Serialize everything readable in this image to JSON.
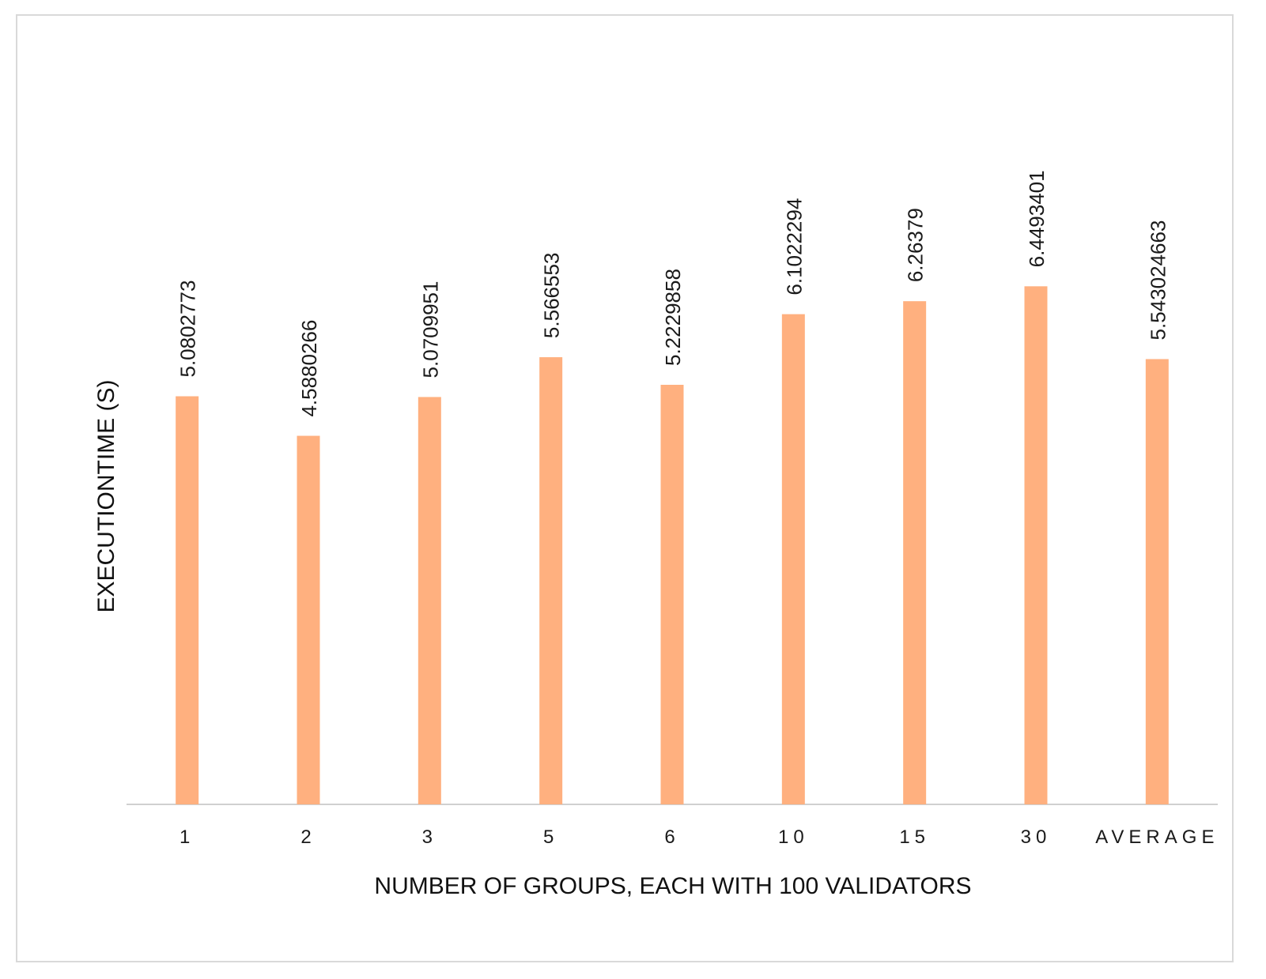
{
  "chart_data": {
    "type": "bar",
    "title": "",
    "xlabel": "NUMBER OF GROUPS, EACH WITH 100 VALIDATORS",
    "ylabel": "EXECUTIONTIME (S)",
    "categories": [
      "1",
      "2",
      "3",
      "5",
      "6",
      "10",
      "15",
      "30",
      "AVERAGE"
    ],
    "values": [
      5.0802773,
      4.5880266,
      5.0709951,
      5.566553,
      5.2229858,
      6.1022294,
      6.26379,
      6.4493401,
      5.543024663
    ],
    "value_labels": [
      "5.0802773",
      "4.5880266",
      "5.0709951",
      "5.566553",
      "5.2229858",
      "6.1022294",
      "6.26379",
      "6.4493401",
      "5.543024663"
    ],
    "ylim": [
      0,
      9
    ],
    "grid": false,
    "legend": "none",
    "bar_color": "#ffb07f",
    "axis_color": "#d0d0d0"
  }
}
